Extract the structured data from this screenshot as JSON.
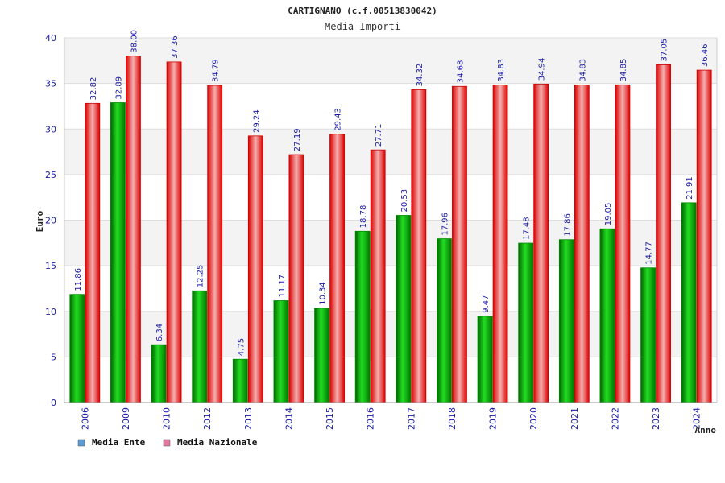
{
  "title": "CARTIGNANO (c.f.00513830042)",
  "subtitle": "Media Importi",
  "chart_data": {
    "type": "bar",
    "xlabel": "Anno",
    "ylabel": "Euro",
    "ylim": [
      0,
      40
    ],
    "yticks": [
      0,
      5,
      10,
      15,
      20,
      25,
      30,
      35,
      40
    ],
    "grid": true,
    "legend_position": "bottom-left",
    "categories": [
      "2006",
      "2009",
      "2010",
      "2012",
      "2013",
      "2014",
      "2015",
      "2016",
      "2017",
      "2018",
      "2019",
      "2020",
      "2021",
      "2022",
      "2023",
      "2024"
    ],
    "series": [
      {
        "name": "Media Ente",
        "color": "#00aa00",
        "legend_color": "#5b9bd5",
        "values": [
          11.86,
          32.89,
          6.34,
          12.25,
          4.75,
          11.17,
          10.34,
          18.78,
          20.53,
          17.96,
          9.47,
          17.48,
          17.86,
          19.05,
          14.77,
          21.91
        ],
        "labels": [
          "11.86",
          "32.89",
          "6.34",
          "12.25",
          "4.75",
          "11.17",
          "10.34",
          "18.78",
          "20.53",
          "17.96",
          "9.47",
          "17.48",
          "17.86",
          "19.05",
          "14.77",
          "21.91"
        ]
      },
      {
        "name": "Media Nazionale",
        "color": "#ee1111",
        "legend_color": "#e377a0",
        "values": [
          32.82,
          38.0,
          37.36,
          34.79,
          29.24,
          27.19,
          29.43,
          27.71,
          34.32,
          34.68,
          34.83,
          34.94,
          34.83,
          34.85,
          37.05,
          36.46
        ],
        "labels": [
          "32.82",
          "38.00",
          "37.36",
          "34.79",
          "29.24",
          "27.19",
          "29.43",
          "27.71",
          "34.32",
          "34.68",
          "34.83",
          "34.94",
          "34.83",
          "34.85",
          "37.05",
          "36.46"
        ]
      }
    ]
  }
}
